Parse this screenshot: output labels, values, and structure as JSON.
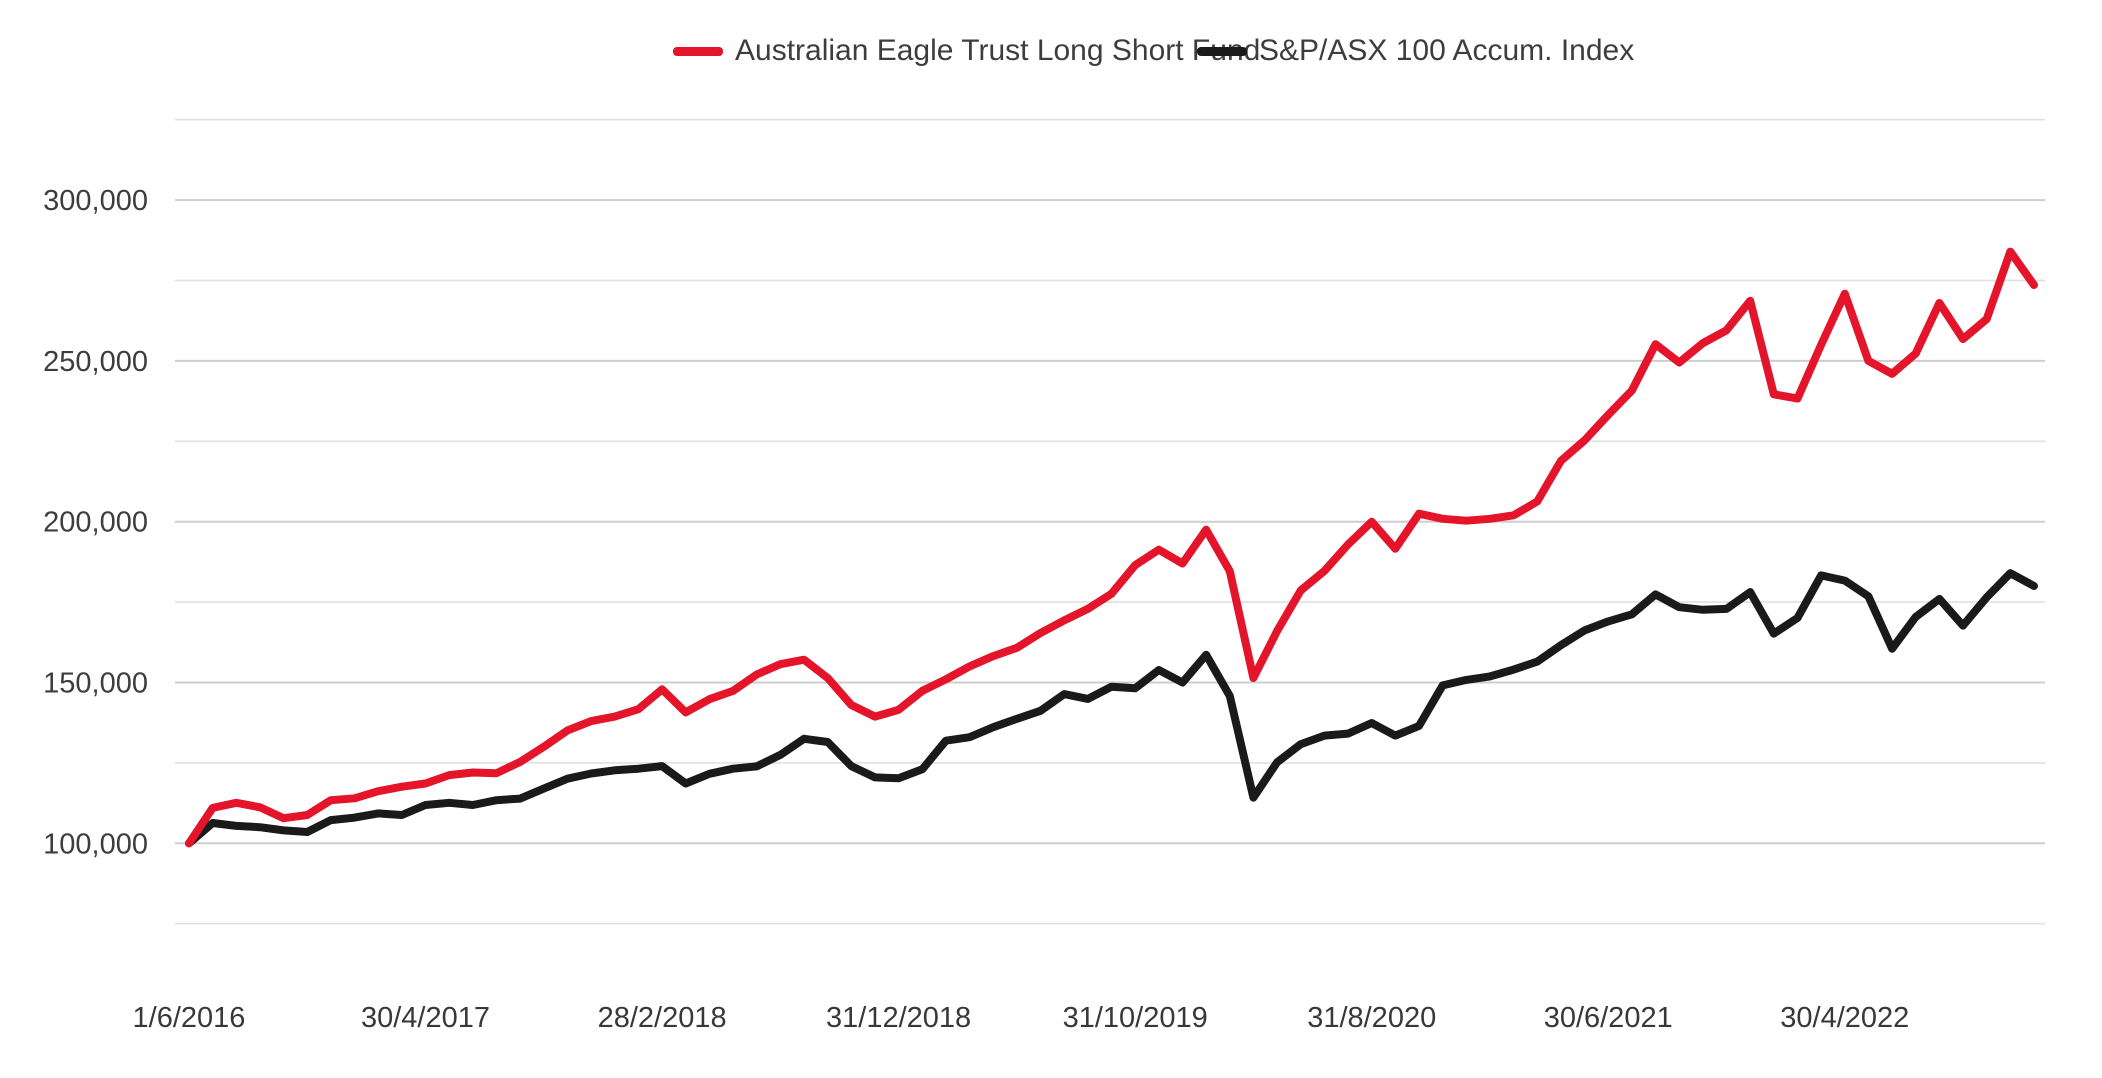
{
  "chart_data": {
    "type": "line",
    "title": "",
    "legend_position": "top-center",
    "grid": "horizontal-only",
    "legend": [
      {
        "label": "Australian Eagle Trust Long Short Fund",
        "color": "#e4152b"
      },
      {
        "label": "S&P/ASX 100 Accum. Index",
        "color": "#1a1a1a"
      }
    ],
    "x_axis": {
      "tick_labels": [
        "1/6/2016",
        "30/4/2017",
        "28/2/2018",
        "31/12/2018",
        "31/10/2019",
        "31/8/2020",
        "30/6/2021",
        "30/4/2022"
      ],
      "tick_point_indices": [
        0,
        10,
        20,
        30,
        40,
        50,
        60,
        70
      ],
      "point_count": 79
    },
    "y_axis": {
      "tick_labels": [
        "100,000",
        "150,000",
        "200,000",
        "250,000",
        "300,000"
      ],
      "tick_values": [
        100000,
        150000,
        200000,
        250000,
        300000
      ],
      "gridline_values": [
        75000,
        100000,
        125000,
        150000,
        175000,
        200000,
        225000,
        250000,
        275000,
        300000,
        325000
      ],
      "ylim": [
        75000,
        335000
      ]
    },
    "series": [
      {
        "name": "Australian Eagle Trust Long Short Fund",
        "color": "#e4152b",
        "values": [
          100000,
          111000,
          112600,
          111200,
          107800,
          108800,
          113400,
          114000,
          116200,
          117600,
          118600,
          121200,
          122000,
          121800,
          125300,
          130000,
          135100,
          138000,
          139400,
          141700,
          147900,
          140700,
          144800,
          147400,
          152500,
          155700,
          157100,
          151400,
          143000,
          139400,
          141500,
          147400,
          151000,
          155000,
          158200,
          160800,
          165400,
          169300,
          172900,
          177600,
          186500,
          191300,
          187000,
          197500,
          184600,
          151400,
          166000,
          178600,
          184700,
          192900,
          200000,
          191600,
          202500,
          200900,
          200300,
          200900,
          202000,
          206300,
          218900,
          225300,
          233200,
          240800,
          255200,
          249500,
          255500,
          259500,
          268700,
          239600,
          238300,
          255000,
          270900,
          250000,
          246000,
          252300,
          268000,
          256800,
          263000,
          284000,
          273600
        ]
      },
      {
        "name": "S&P/ASX 100 Accum. Index",
        "color": "#1a1a1a",
        "values": [
          100000,
          106300,
          105400,
          105000,
          104000,
          103500,
          107200,
          108000,
          109300,
          108800,
          111900,
          112600,
          111900,
          113400,
          113900,
          117000,
          120100,
          121700,
          122700,
          123200,
          124000,
          118600,
          121600,
          123200,
          123900,
          127500,
          132500,
          131500,
          124000,
          120500,
          120200,
          123000,
          131900,
          133000,
          136100,
          138700,
          141200,
          146400,
          144900,
          148700,
          148200,
          153900,
          150000,
          158600,
          145800,
          114200,
          125200,
          130800,
          133500,
          134100,
          137400,
          133500,
          136500,
          149100,
          150800,
          151900,
          154000,
          156500,
          161600,
          166200,
          169000,
          171200,
          177400,
          173400,
          172600,
          172900,
          178100,
          165200,
          170100,
          183300,
          181700,
          176800,
          160500,
          170400,
          176000,
          167700,
          176500,
          184000,
          180000
        ]
      }
    ]
  }
}
